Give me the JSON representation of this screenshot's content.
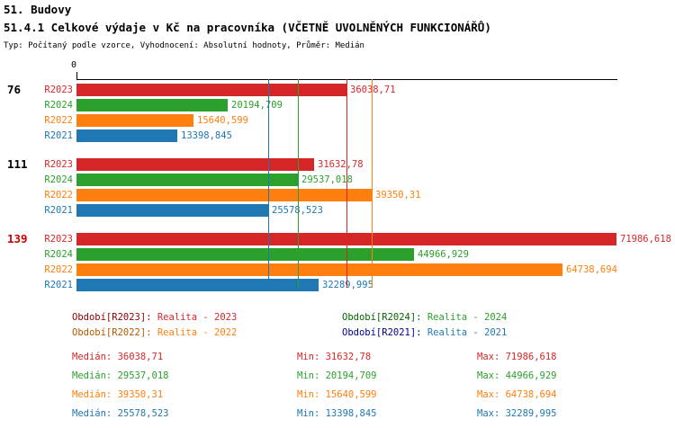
{
  "header": {
    "title": "51. Budovy",
    "subtitle": "51.4.1 Celkové výdaje v Kč na pracovníka (VČETNĚ UVOLNĚNÝCH FUNKCIONÁŘŮ)",
    "meta": "Typ: Počítaný podle vzorce, Vyhodnocení: Absolutní hodnoty, Průměr: Medián"
  },
  "chart_data": {
    "type": "bar",
    "orientation": "horizontal",
    "x_axis": {
      "zero_label": "0",
      "min": 0,
      "max": 71986.618
    },
    "series_order": [
      "R2023",
      "R2024",
      "R2022",
      "R2021"
    ],
    "series_colors": {
      "R2023": "#d62728",
      "R2024": "#2ca02c",
      "R2022": "#ff7f0e",
      "R2021": "#1f77b4"
    },
    "groups": [
      {
        "label": "76",
        "label_color": "#000000",
        "bars": [
          {
            "series": "R2023",
            "value": 36038.71,
            "value_label": "36038,71"
          },
          {
            "series": "R2024",
            "value": 20194.709,
            "value_label": "20194,709"
          },
          {
            "series": "R2022",
            "value": 15640.599,
            "value_label": "15640,599"
          },
          {
            "series": "R2021",
            "value": 13398.845,
            "value_label": "13398,845"
          }
        ]
      },
      {
        "label": "111",
        "label_color": "#000000",
        "bars": [
          {
            "series": "R2023",
            "value": 31632.78,
            "value_label": "31632,78"
          },
          {
            "series": "R2024",
            "value": 29537.018,
            "value_label": "29537,018"
          },
          {
            "series": "R2022",
            "value": 39350.31,
            "value_label": "39350,31"
          },
          {
            "series": "R2021",
            "value": 25578.523,
            "value_label": "25578,523"
          }
        ]
      },
      {
        "label": "139",
        "label_color": "#cc0000",
        "bars": [
          {
            "series": "R2023",
            "value": 71986.618,
            "value_label": "71986,618"
          },
          {
            "series": "R2024",
            "value": 44966.929,
            "value_label": "44966,929"
          },
          {
            "series": "R2022",
            "value": 64738.694,
            "value_label": "64738,694"
          },
          {
            "series": "R2021",
            "value": 32289.995,
            "value_label": "32289,995"
          }
        ]
      }
    ],
    "median_lines": [
      {
        "series": "R2023",
        "value": 36038.71
      },
      {
        "series": "R2024",
        "value": 29537.018
      },
      {
        "series": "R2022",
        "value": 39350.31
      },
      {
        "series": "R2021",
        "value": 25578.523
      }
    ]
  },
  "legend": [
    {
      "prefix": "Období[R2023]:",
      "label": "Realita - 2023",
      "prefix_color": "#8b0000",
      "color": "#d62728"
    },
    {
      "prefix": "Období[R2024]:",
      "label": "Realita - 2024",
      "prefix_color": "#006400",
      "color": "#2ca02c"
    },
    {
      "prefix": "Období[R2022]:",
      "label": "Realita - 2022",
      "prefix_color": "#b35900",
      "color": "#ff7f0e"
    },
    {
      "prefix": "Období[R2021]:",
      "label": "Realita - 2021",
      "prefix_color": "#00008b",
      "color": "#1f77b4"
    }
  ],
  "stats": [
    {
      "median": "Medián: 36038,71",
      "min": "Min: 31632,78",
      "max": "Max: 71986,618",
      "color": "#d62728"
    },
    {
      "median": "Medián: 29537,018",
      "min": "Min: 20194,709",
      "max": "Max: 44966,929",
      "color": "#2ca02c"
    },
    {
      "median": "Medián: 39350,31",
      "min": "Min: 15640,599",
      "max": "Max: 64738,694",
      "color": "#ff7f0e"
    },
    {
      "median": "Medián: 25578,523",
      "min": "Min: 13398,845",
      "max": "Max: 32289,995",
      "color": "#1f77b4"
    }
  ]
}
